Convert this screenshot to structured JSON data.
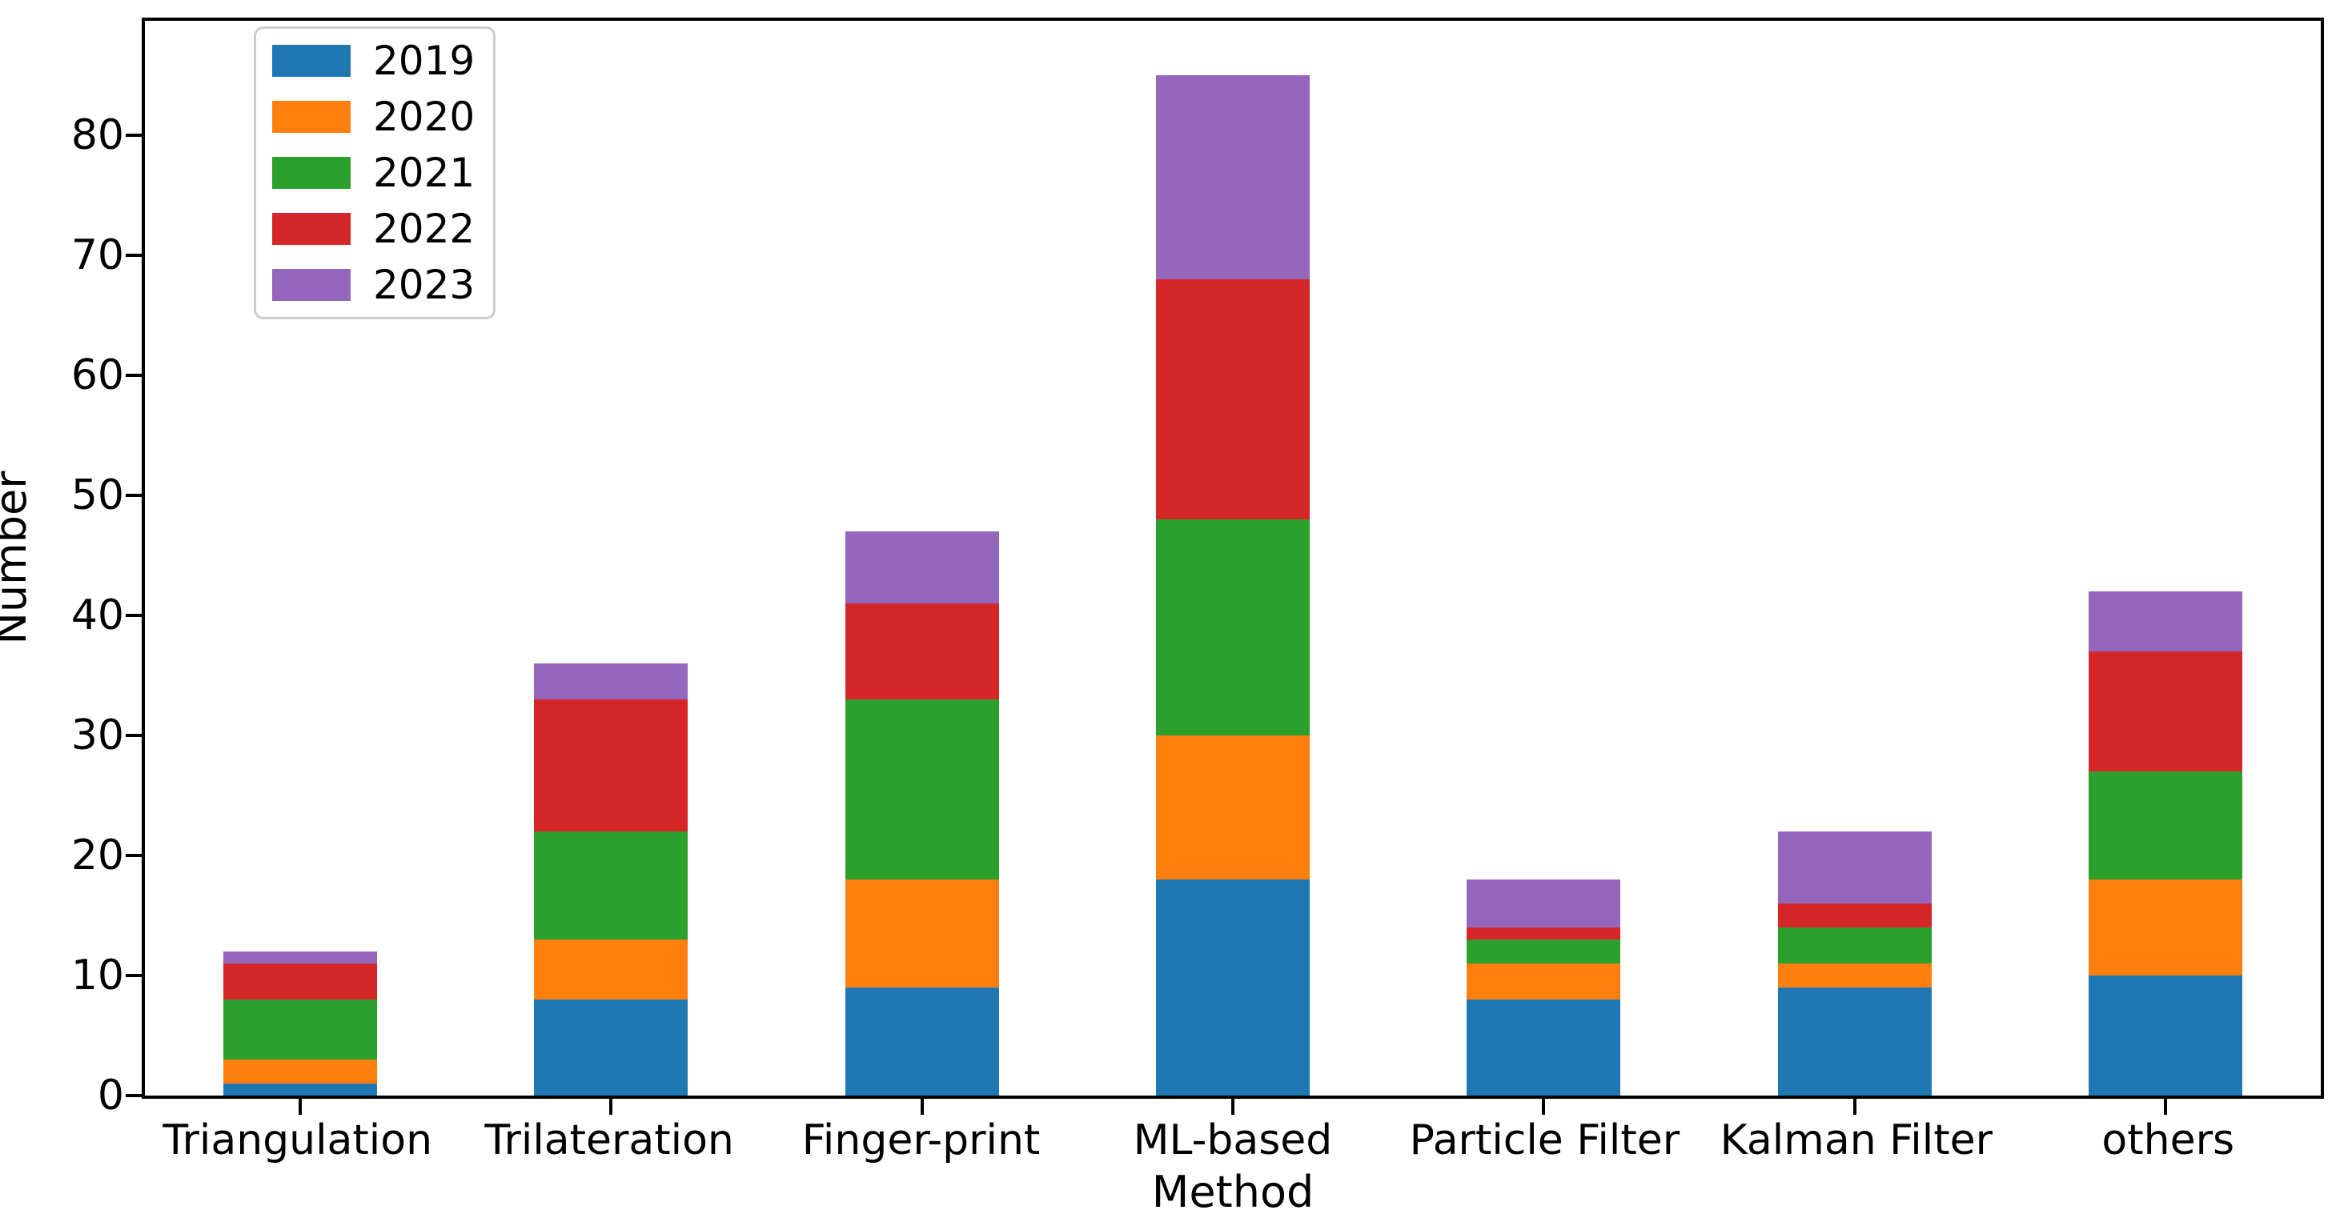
{
  "figure": {
    "background": "#ffffff"
  },
  "chart_data": {
    "type": "bar",
    "stacked": true,
    "title": "",
    "xlabel": "Method",
    "ylabel": "Number",
    "categories": [
      "Triangulation",
      "Trilateration",
      "Finger-print",
      "ML-based",
      "Particle Filter",
      "Kalman Filter",
      "others"
    ],
    "series": [
      {
        "name": "2019",
        "color": "#1f77b4",
        "values": [
          1,
          8,
          9,
          18,
          8,
          9,
          10
        ]
      },
      {
        "name": "2020",
        "color": "#ff7f0e",
        "values": [
          2,
          5,
          9,
          12,
          3,
          2,
          8
        ]
      },
      {
        "name": "2021",
        "color": "#2ca02c",
        "values": [
          5,
          9,
          15,
          18,
          2,
          3,
          9
        ]
      },
      {
        "name": "2022",
        "color": "#d62728",
        "values": [
          3,
          11,
          8,
          20,
          1,
          2,
          10
        ]
      },
      {
        "name": "2023",
        "color": "#9467bd",
        "values": [
          1,
          3,
          6,
          17,
          4,
          6,
          5
        ]
      }
    ],
    "stack_totals": [
      12,
      36,
      47,
      85,
      18,
      22,
      42
    ],
    "ylim": [
      0,
      89.5
    ],
    "yticks": [
      0,
      10,
      20,
      30,
      40,
      50,
      60,
      70,
      80
    ],
    "grid": false,
    "legend_position": "upper-left",
    "axis_color": "#000000"
  }
}
